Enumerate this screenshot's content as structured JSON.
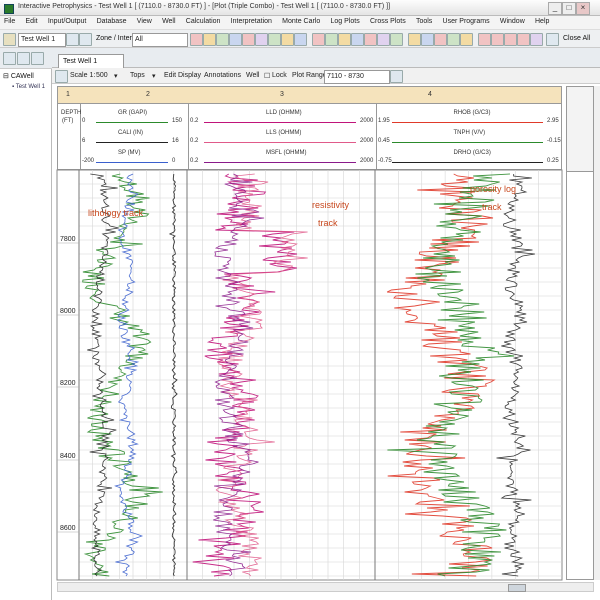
{
  "window": {
    "title": "Interactive Petrophysics - Test Well 1 [ (7110.0 - 8730.0 FT) ] - [Plot (Triple Combo) - Test Well 1 [ (7110.0 - 8730.0 FT) ]]"
  },
  "menu": [
    "File",
    "Edit",
    "Input/Output",
    "Database",
    "View",
    "Well",
    "Calculation",
    "Interpretation",
    "Monte Carlo",
    "Log Plots",
    "Cross Plots",
    "Tools",
    "User Programs",
    "Window",
    "Help"
  ],
  "toolbar": {
    "well_label": "Well",
    "well_value": "Test Well 1",
    "interval_label": "Zone / Interval",
    "interval_value": "All",
    "right_label": "Close All"
  },
  "sidebar": {
    "root_label": "CAWell",
    "child_label": "Test Well 1"
  },
  "tab": {
    "label": "Test Well 1"
  },
  "plot_toolbar": {
    "scale_label": "Scale 1:",
    "scale_value": "500",
    "items": [
      "Tops",
      "Edit Display",
      "Annotations",
      "Well",
      "Lock"
    ],
    "plot_range_label": "Plot Range",
    "plot_range_value": "7110 - 8730"
  },
  "tracks": {
    "numbers": [
      "1",
      "2",
      "3",
      "4"
    ],
    "depth_header": [
      "DEPTH",
      "(FT)"
    ],
    "track2_curves": [
      {
        "name": "GR (GAPI)",
        "min": "0",
        "max": "150",
        "color": "#2c8a2c"
      },
      {
        "name": "CALI (IN)",
        "min": "6",
        "max": "16",
        "color": "#222222"
      },
      {
        "name": "SP (MV)",
        "min": "-200",
        "max": "0",
        "color": "#3a5fcd"
      }
    ],
    "track3_curves": [
      {
        "name": "LLD (OHMM)",
        "min": "0.2",
        "max": "2000",
        "color": "#c0147a"
      },
      {
        "name": "LLS (OHMM)",
        "min": "0.2",
        "max": "2000",
        "color": "#e05a8a"
      },
      {
        "name": "MSFL (OHMM)",
        "min": "0.2",
        "max": "2000",
        "color": "#8a1a8a"
      }
    ],
    "track4_curves": [
      {
        "name": "RHOB (G/C3)",
        "min": "1.95",
        "max": "2.95",
        "color": "#e03a2a"
      },
      {
        "name": "TNPH (V/V)",
        "min": "0.45",
        "max": "-0.15",
        "color": "#2c8a2c"
      },
      {
        "name": "DRHO (G/C3)",
        "min": "-0.75",
        "max": "0.25",
        "color": "#222222"
      }
    ]
  },
  "annotations": {
    "lithology": "lithology track",
    "resistivity": "resistivity track",
    "porosity": "porosity log track"
  },
  "depths": [
    "7800",
    "8000",
    "8200",
    "8400",
    "8600"
  ],
  "colors": {
    "header_fill": "#f5e3bc",
    "gr": "#2c8a2c",
    "sp": "#3a5fcd",
    "res": "#c0147a",
    "den": "#e03a2a",
    "annotation": "#c8481e"
  }
}
